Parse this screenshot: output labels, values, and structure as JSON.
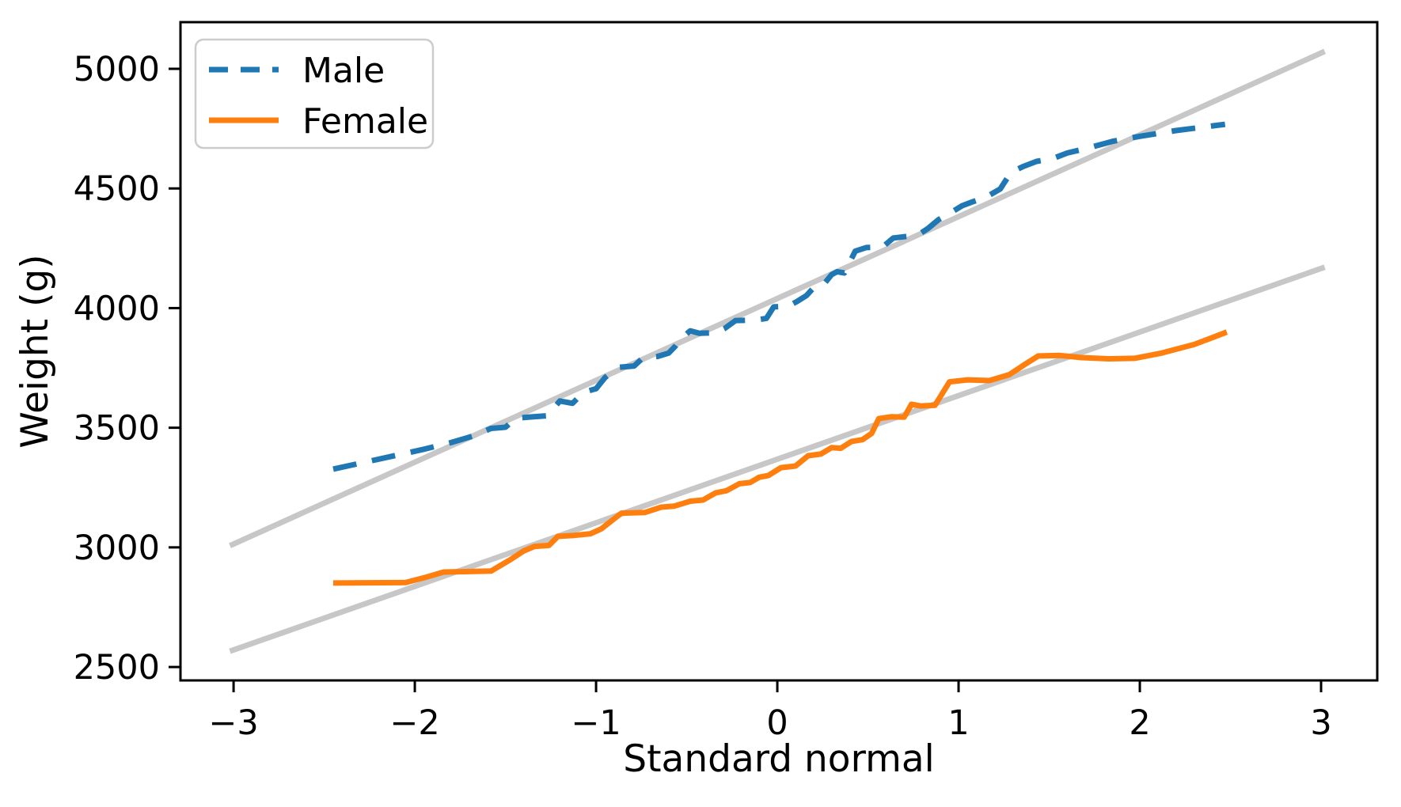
{
  "figure": {
    "background": "#ffffff",
    "title": ""
  },
  "colors": {
    "male": "#1f77b4",
    "female": "#ff7f0e",
    "reference": "#c7c7c7",
    "spine": "#000000",
    "legend_border": "#cccccc"
  },
  "chart_data": {
    "type": "line",
    "title": "",
    "xlabel": "Standard normal",
    "ylabel": "Weight (g)",
    "xlim": [
      -3.293,
      3.31
    ],
    "ylim": [
      2444,
      5195
    ],
    "xticks": [
      -3,
      -2,
      -1,
      0,
      1,
      2,
      3
    ],
    "xtick_labels": [
      "−3",
      "−2",
      "−1",
      "0",
      "1",
      "2",
      "3"
    ],
    "yticks": [
      2500,
      3000,
      3500,
      4000,
      4500,
      5000
    ],
    "ytick_labels": [
      "2500",
      "3000",
      "3500",
      "4000",
      "4500",
      "5000"
    ],
    "grid": false,
    "legend": {
      "position": "upper left",
      "entries": [
        {
          "label": "Male",
          "color": "#1f77b4",
          "style": "dashed"
        },
        {
          "label": "Female",
          "color": "#ff7f0e",
          "style": "solid"
        }
      ]
    },
    "series": [
      {
        "name": "Male model",
        "role": "reference-line",
        "color": "#c7c7c7",
        "style": "solid",
        "points": [
          [
            -3.02,
            3007
          ],
          [
            3.02,
            5073
          ]
        ]
      },
      {
        "name": "Female model",
        "role": "reference-line",
        "color": "#c7c7c7",
        "style": "solid",
        "points": [
          [
            -3.02,
            2566
          ],
          [
            3.02,
            4171
          ]
        ]
      },
      {
        "name": "Male",
        "role": "data",
        "color": "#1f77b4",
        "style": "dashed",
        "points": [
          [
            -2.45,
            3327
          ],
          [
            -2.3,
            3352
          ],
          [
            -2.1,
            3385
          ],
          [
            -1.95,
            3410
          ],
          [
            -1.8,
            3438
          ],
          [
            -1.68,
            3465
          ],
          [
            -1.58,
            3497
          ],
          [
            -1.5,
            3502
          ],
          [
            -1.44,
            3540
          ],
          [
            -1.36,
            3545
          ],
          [
            -1.27,
            3550
          ],
          [
            -1.2,
            3612
          ],
          [
            -1.13,
            3602
          ],
          [
            -1.07,
            3648
          ],
          [
            -1.0,
            3663
          ],
          [
            -0.95,
            3710
          ],
          [
            -0.88,
            3752
          ],
          [
            -0.79,
            3758
          ],
          [
            -0.74,
            3793
          ],
          [
            -0.66,
            3798
          ],
          [
            -0.6,
            3812
          ],
          [
            -0.56,
            3843
          ],
          [
            -0.53,
            3873
          ],
          [
            -0.48,
            3905
          ],
          [
            -0.43,
            3895
          ],
          [
            -0.34,
            3897
          ],
          [
            -0.29,
            3915
          ],
          [
            -0.23,
            3948
          ],
          [
            -0.12,
            3950
          ],
          [
            -0.06,
            3957
          ],
          [
            -0.02,
            4005
          ],
          [
            0.06,
            4008
          ],
          [
            0.11,
            4028
          ],
          [
            0.16,
            4052
          ],
          [
            0.21,
            4093
          ],
          [
            0.26,
            4103
          ],
          [
            0.3,
            4140
          ],
          [
            0.33,
            4152
          ],
          [
            0.37,
            4147
          ],
          [
            0.43,
            4238
          ],
          [
            0.49,
            4253
          ],
          [
            0.58,
            4255
          ],
          [
            0.64,
            4293
          ],
          [
            0.72,
            4300
          ],
          [
            0.78,
            4308
          ],
          [
            0.83,
            4332
          ],
          [
            0.89,
            4370
          ],
          [
            0.96,
            4400
          ],
          [
            1.02,
            4428
          ],
          [
            1.08,
            4445
          ],
          [
            1.15,
            4463
          ],
          [
            1.23,
            4498
          ],
          [
            1.29,
            4568
          ],
          [
            1.36,
            4593
          ],
          [
            1.43,
            4613
          ],
          [
            1.52,
            4625
          ],
          [
            1.6,
            4648
          ],
          [
            1.72,
            4670
          ],
          [
            1.85,
            4697
          ],
          [
            2.0,
            4718
          ],
          [
            2.2,
            4742
          ],
          [
            2.47,
            4768
          ]
        ]
      },
      {
        "name": "Female",
        "role": "data",
        "color": "#ff7f0e",
        "style": "solid",
        "points": [
          [
            -2.45,
            2851
          ],
          [
            -2.05,
            2853
          ],
          [
            -1.95,
            2873
          ],
          [
            -1.84,
            2897
          ],
          [
            -1.7,
            2899
          ],
          [
            -1.58,
            2901
          ],
          [
            -1.47,
            2950
          ],
          [
            -1.4,
            2985
          ],
          [
            -1.34,
            3004
          ],
          [
            -1.26,
            3008
          ],
          [
            -1.21,
            3046
          ],
          [
            -1.12,
            3050
          ],
          [
            -1.03,
            3057
          ],
          [
            -0.97,
            3078
          ],
          [
            -0.9,
            3120
          ],
          [
            -0.86,
            3143
          ],
          [
            -0.73,
            3146
          ],
          [
            -0.64,
            3168
          ],
          [
            -0.57,
            3172
          ],
          [
            -0.48,
            3193
          ],
          [
            -0.41,
            3198
          ],
          [
            -0.34,
            3228
          ],
          [
            -0.28,
            3237
          ],
          [
            -0.21,
            3266
          ],
          [
            -0.15,
            3271
          ],
          [
            -0.1,
            3293
          ],
          [
            -0.05,
            3300
          ],
          [
            0.02,
            3333
          ],
          [
            0.1,
            3340
          ],
          [
            0.17,
            3383
          ],
          [
            0.24,
            3390
          ],
          [
            0.3,
            3417
          ],
          [
            0.35,
            3414
          ],
          [
            0.41,
            3443
          ],
          [
            0.47,
            3450
          ],
          [
            0.52,
            3476
          ],
          [
            0.56,
            3538
          ],
          [
            0.63,
            3546
          ],
          [
            0.7,
            3544
          ],
          [
            0.74,
            3598
          ],
          [
            0.79,
            3591
          ],
          [
            0.87,
            3594
          ],
          [
            0.95,
            3692
          ],
          [
            1.05,
            3700
          ],
          [
            1.17,
            3697
          ],
          [
            1.28,
            3722
          ],
          [
            1.36,
            3762
          ],
          [
            1.44,
            3800
          ],
          [
            1.56,
            3802
          ],
          [
            1.68,
            3793
          ],
          [
            1.83,
            3788
          ],
          [
            1.97,
            3790
          ],
          [
            2.12,
            3812
          ],
          [
            2.3,
            3848
          ],
          [
            2.48,
            3900
          ]
        ]
      }
    ]
  }
}
